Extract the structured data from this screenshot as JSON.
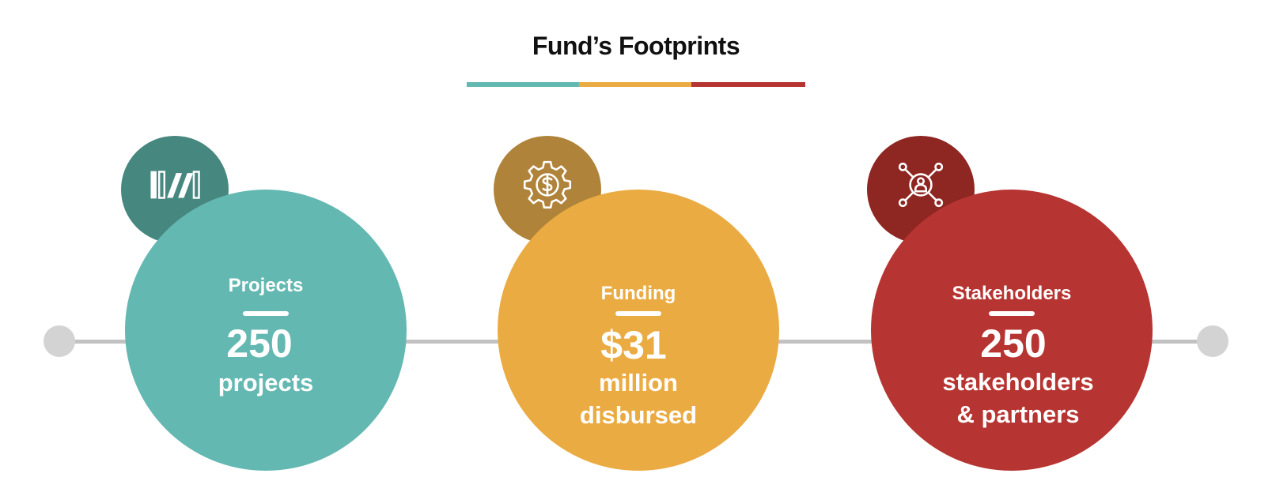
{
  "title": "Fund’s Footprints",
  "colors": {
    "teal": "#64b8b2",
    "teal_dark": "#46877f",
    "gold": "#ebab43",
    "gold_dark": "#b0833a",
    "red": "#b63431",
    "red_dark": "#8e2622",
    "timeline": "#c2c2c2"
  },
  "items": [
    {
      "label": "Projects",
      "value": "250",
      "unit_lines": [
        "projects"
      ],
      "icon": "books-icon"
    },
    {
      "label": "Funding",
      "value": "$31",
      "unit_lines": [
        "million",
        "disbursed"
      ],
      "icon": "dollar-gear-icon"
    },
    {
      "label": "Stakeholders",
      "value": "250",
      "unit_lines": [
        "stakeholders",
        "& partners"
      ],
      "icon": "person-network-icon"
    }
  ]
}
